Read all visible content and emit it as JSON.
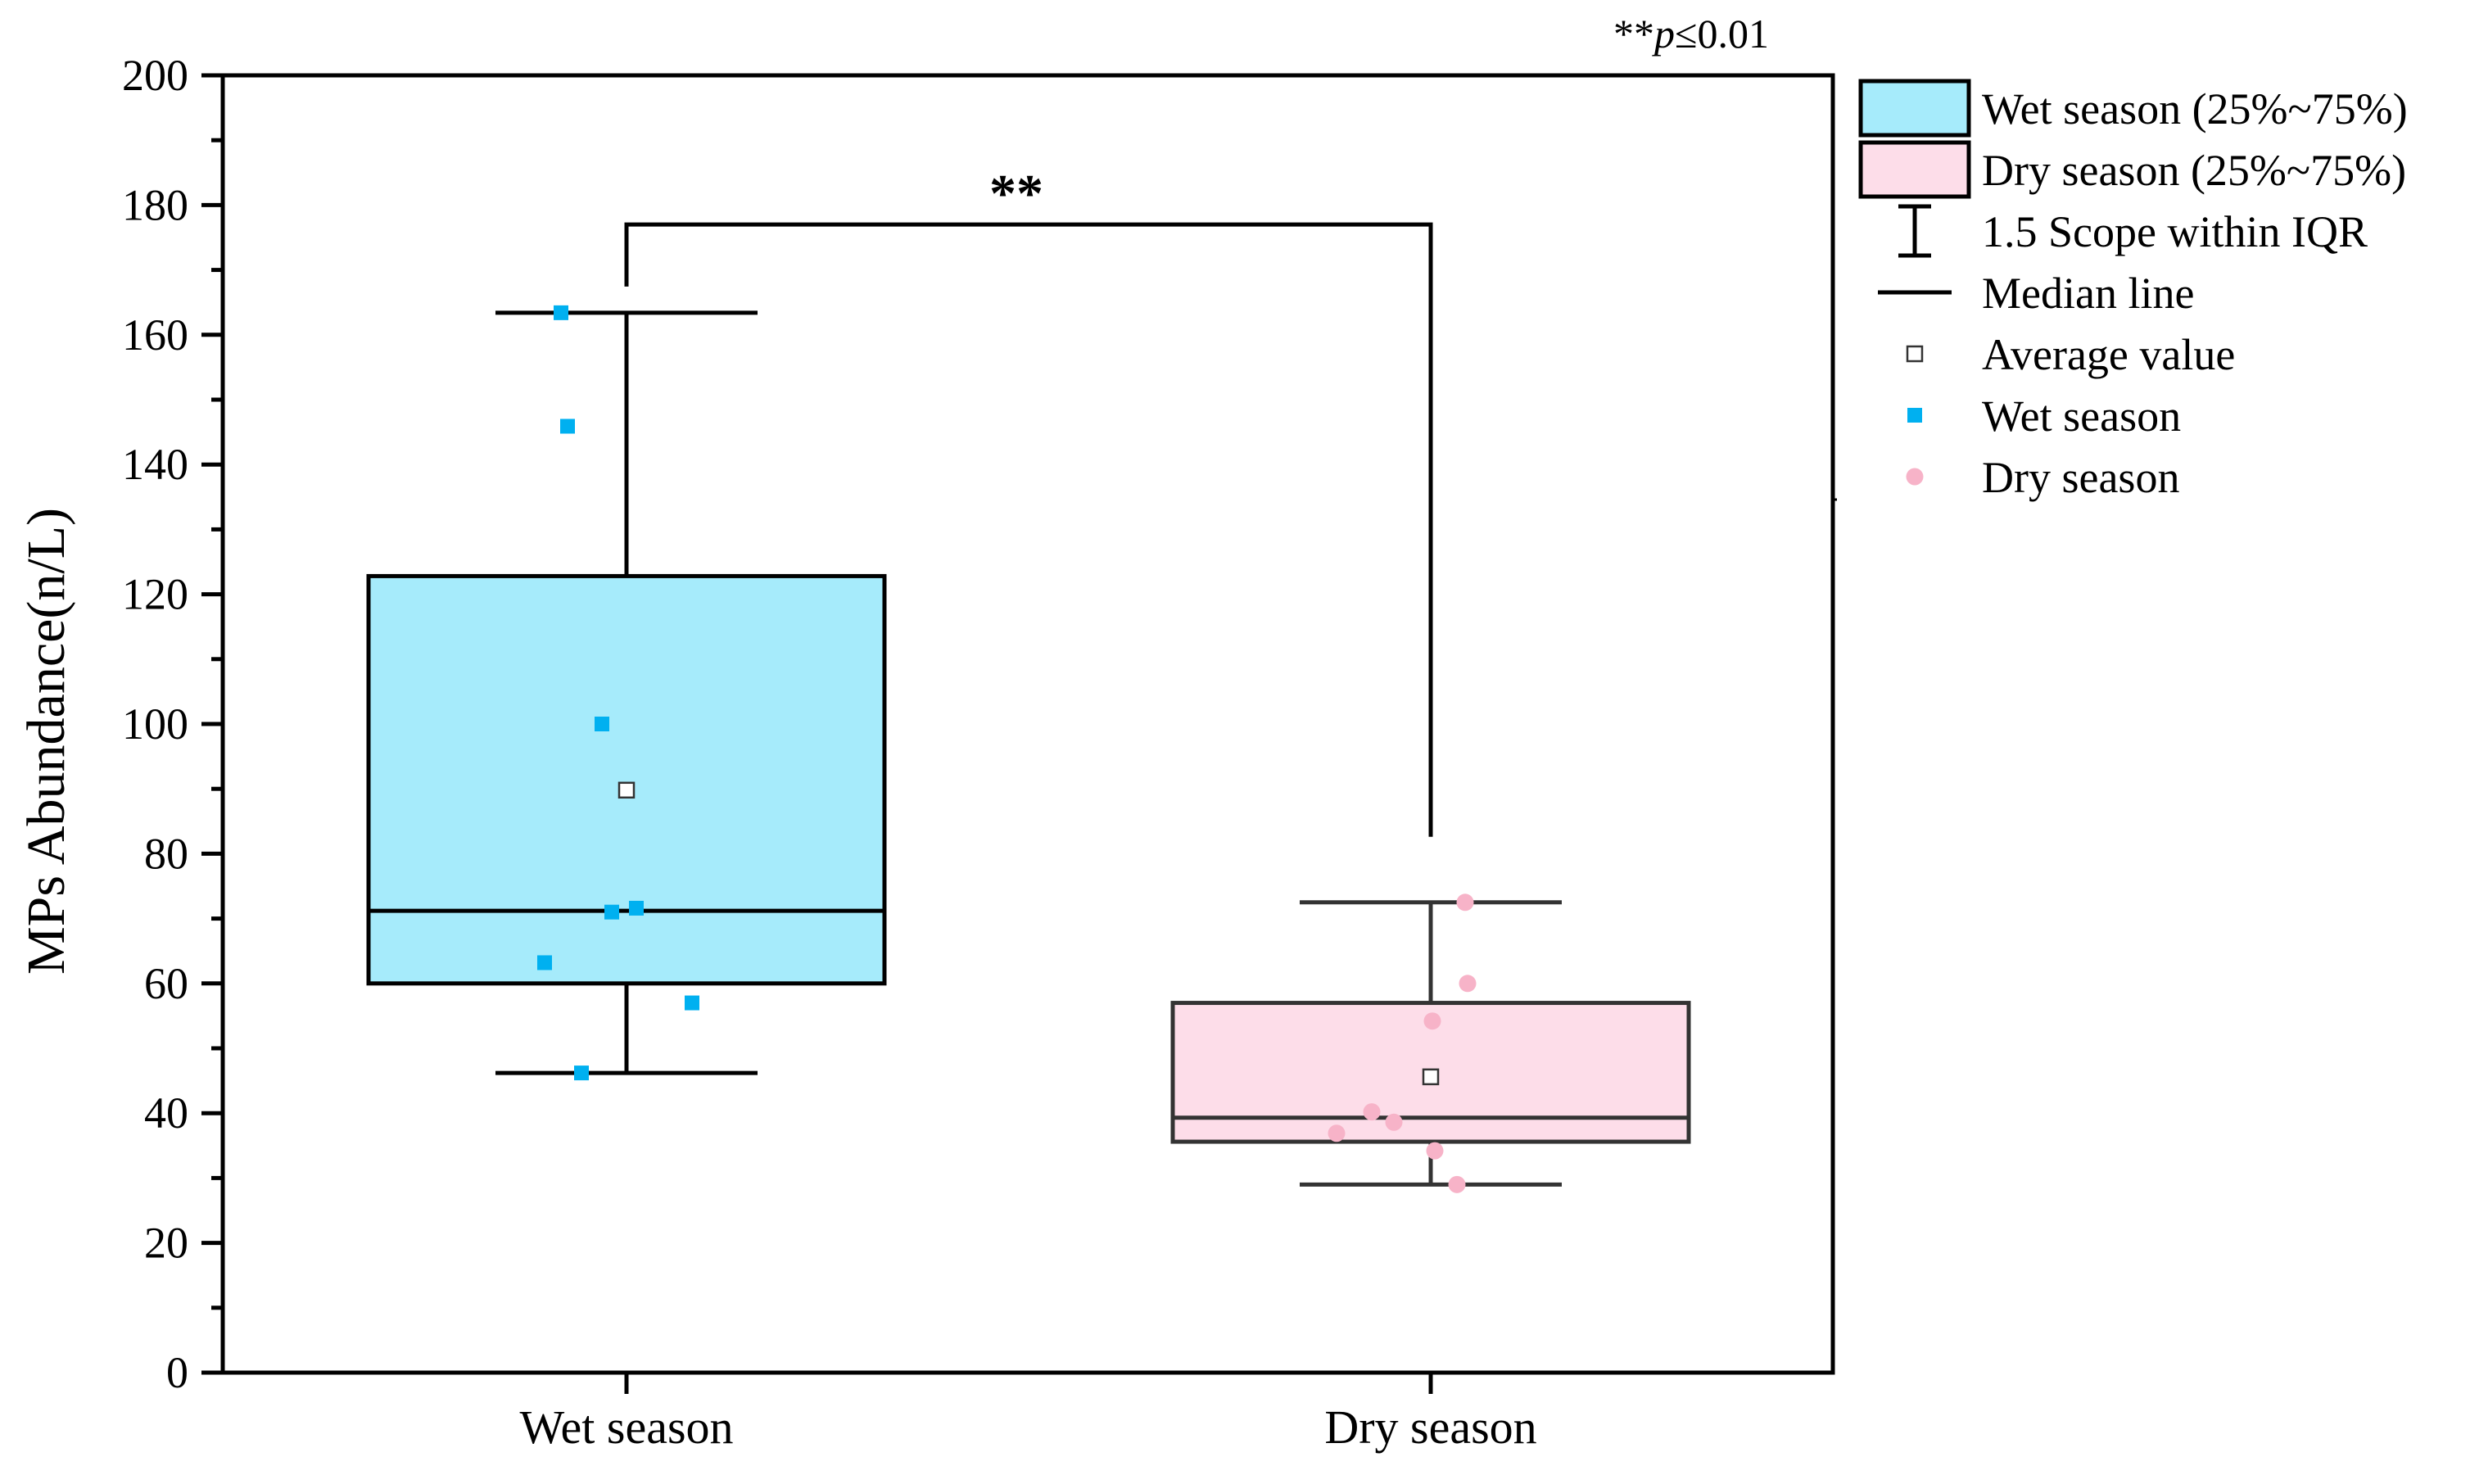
{
  "chart_data": {
    "type": "box",
    "ylabel": "MPs Abundance(n/L)",
    "xlabel": "",
    "ylim": [
      0,
      200
    ],
    "yticks": [
      0,
      20,
      40,
      60,
      80,
      100,
      120,
      140,
      160,
      180,
      200
    ],
    "categories": [
      "Wet season",
      "Dry season"
    ],
    "significance": {
      "note": "**p≤0.01",
      "note_prefix": "**",
      "note_p": "p",
      "note_rest": "≤0.01",
      "bracket_label": "**",
      "bracket_y": 177
    },
    "groups": [
      {
        "name": "Wet season",
        "fill": "#a6ebfb",
        "point_color": "#00b0f0",
        "q1": 60,
        "median": 71.2,
        "q3": 122.8,
        "whisker_low": 46.2,
        "whisker_high": 163.4,
        "mean": 89.8,
        "points": [
          163.4,
          145.9,
          100,
          71,
          71.6,
          63.2,
          57,
          46.2
        ]
      },
      {
        "name": "Dry season",
        "fill": "#fddde9",
        "point_color": "#f7b3c8",
        "q1": 35.6,
        "median": 39.3,
        "q3": 57,
        "whisker_low": 29,
        "whisker_high": 72.5,
        "mean": 45.6,
        "points": [
          72.5,
          60,
          54.2,
          40.2,
          38.6,
          36.9,
          34.2,
          29
        ]
      }
    ],
    "legend": {
      "position": "right",
      "items": [
        {
          "label": "Wet season (25%~75%)",
          "kind": "box",
          "fill": "#a6ebfb"
        },
        {
          "label": "Dry season (25%~75%)",
          "kind": "box",
          "fill": "#fddde9"
        },
        {
          "label": "1.5 Scope within IQR",
          "kind": "whisker"
        },
        {
          "label": "Median line",
          "kind": "line"
        },
        {
          "label": "Average value",
          "kind": "mean"
        },
        {
          "label": "Wet season",
          "kind": "square",
          "fill": "#00b0f0"
        },
        {
          "label": "Dry season",
          "kind": "circle",
          "fill": "#f7b3c8"
        }
      ]
    }
  }
}
